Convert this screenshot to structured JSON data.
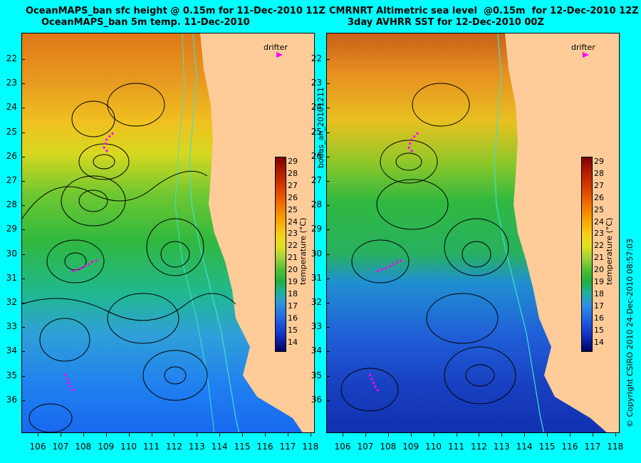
{
  "left_panel": {
    "title_line1": "OceanMAPS_ban sfc height @ 0.15m for 11-Dec-2010 11Z",
    "title_line2": "OceanMAPS_ban 5m temp. 11-Dec-2010"
  },
  "right_panel": {
    "title_line1": "CMRNRT Altimetric sea level  @0.15m  for 12-Dec-2010 12Z",
    "title_line2": "3day AVHRR SST for 12-Dec-2010 00Z"
  },
  "latitude_labels": [
    "22",
    "23",
    "24",
    "25",
    "26",
    "27",
    "28",
    "29",
    "30",
    "31",
    "32",
    "33",
    "34",
    "35",
    "36"
  ],
  "longitude_labels": [
    "106",
    "107",
    "108",
    "109",
    "110",
    "111",
    "112",
    "113",
    "114",
    "115",
    "116",
    "117",
    "118"
  ],
  "colorbar": {
    "labels": [
      "29",
      "28",
      "27",
      "26",
      "25",
      "24",
      "23",
      "22",
      "21",
      "20",
      "19",
      "18",
      "17",
      "16",
      "15",
      "14"
    ],
    "title": "temperature (°C)"
  },
  "drifter_label": "drifter",
  "middle_text": "bodas_an_20101211",
  "copyright_text": "© Copyright CSIRO 2010   24-Dec-2010 08:57:03",
  "colors": {
    "background": "#00ffff",
    "land": "#ffcc99",
    "drifter": "#ff00ff",
    "shelf_contour": "#40e0d0",
    "ssh_contour": "#000000"
  }
}
